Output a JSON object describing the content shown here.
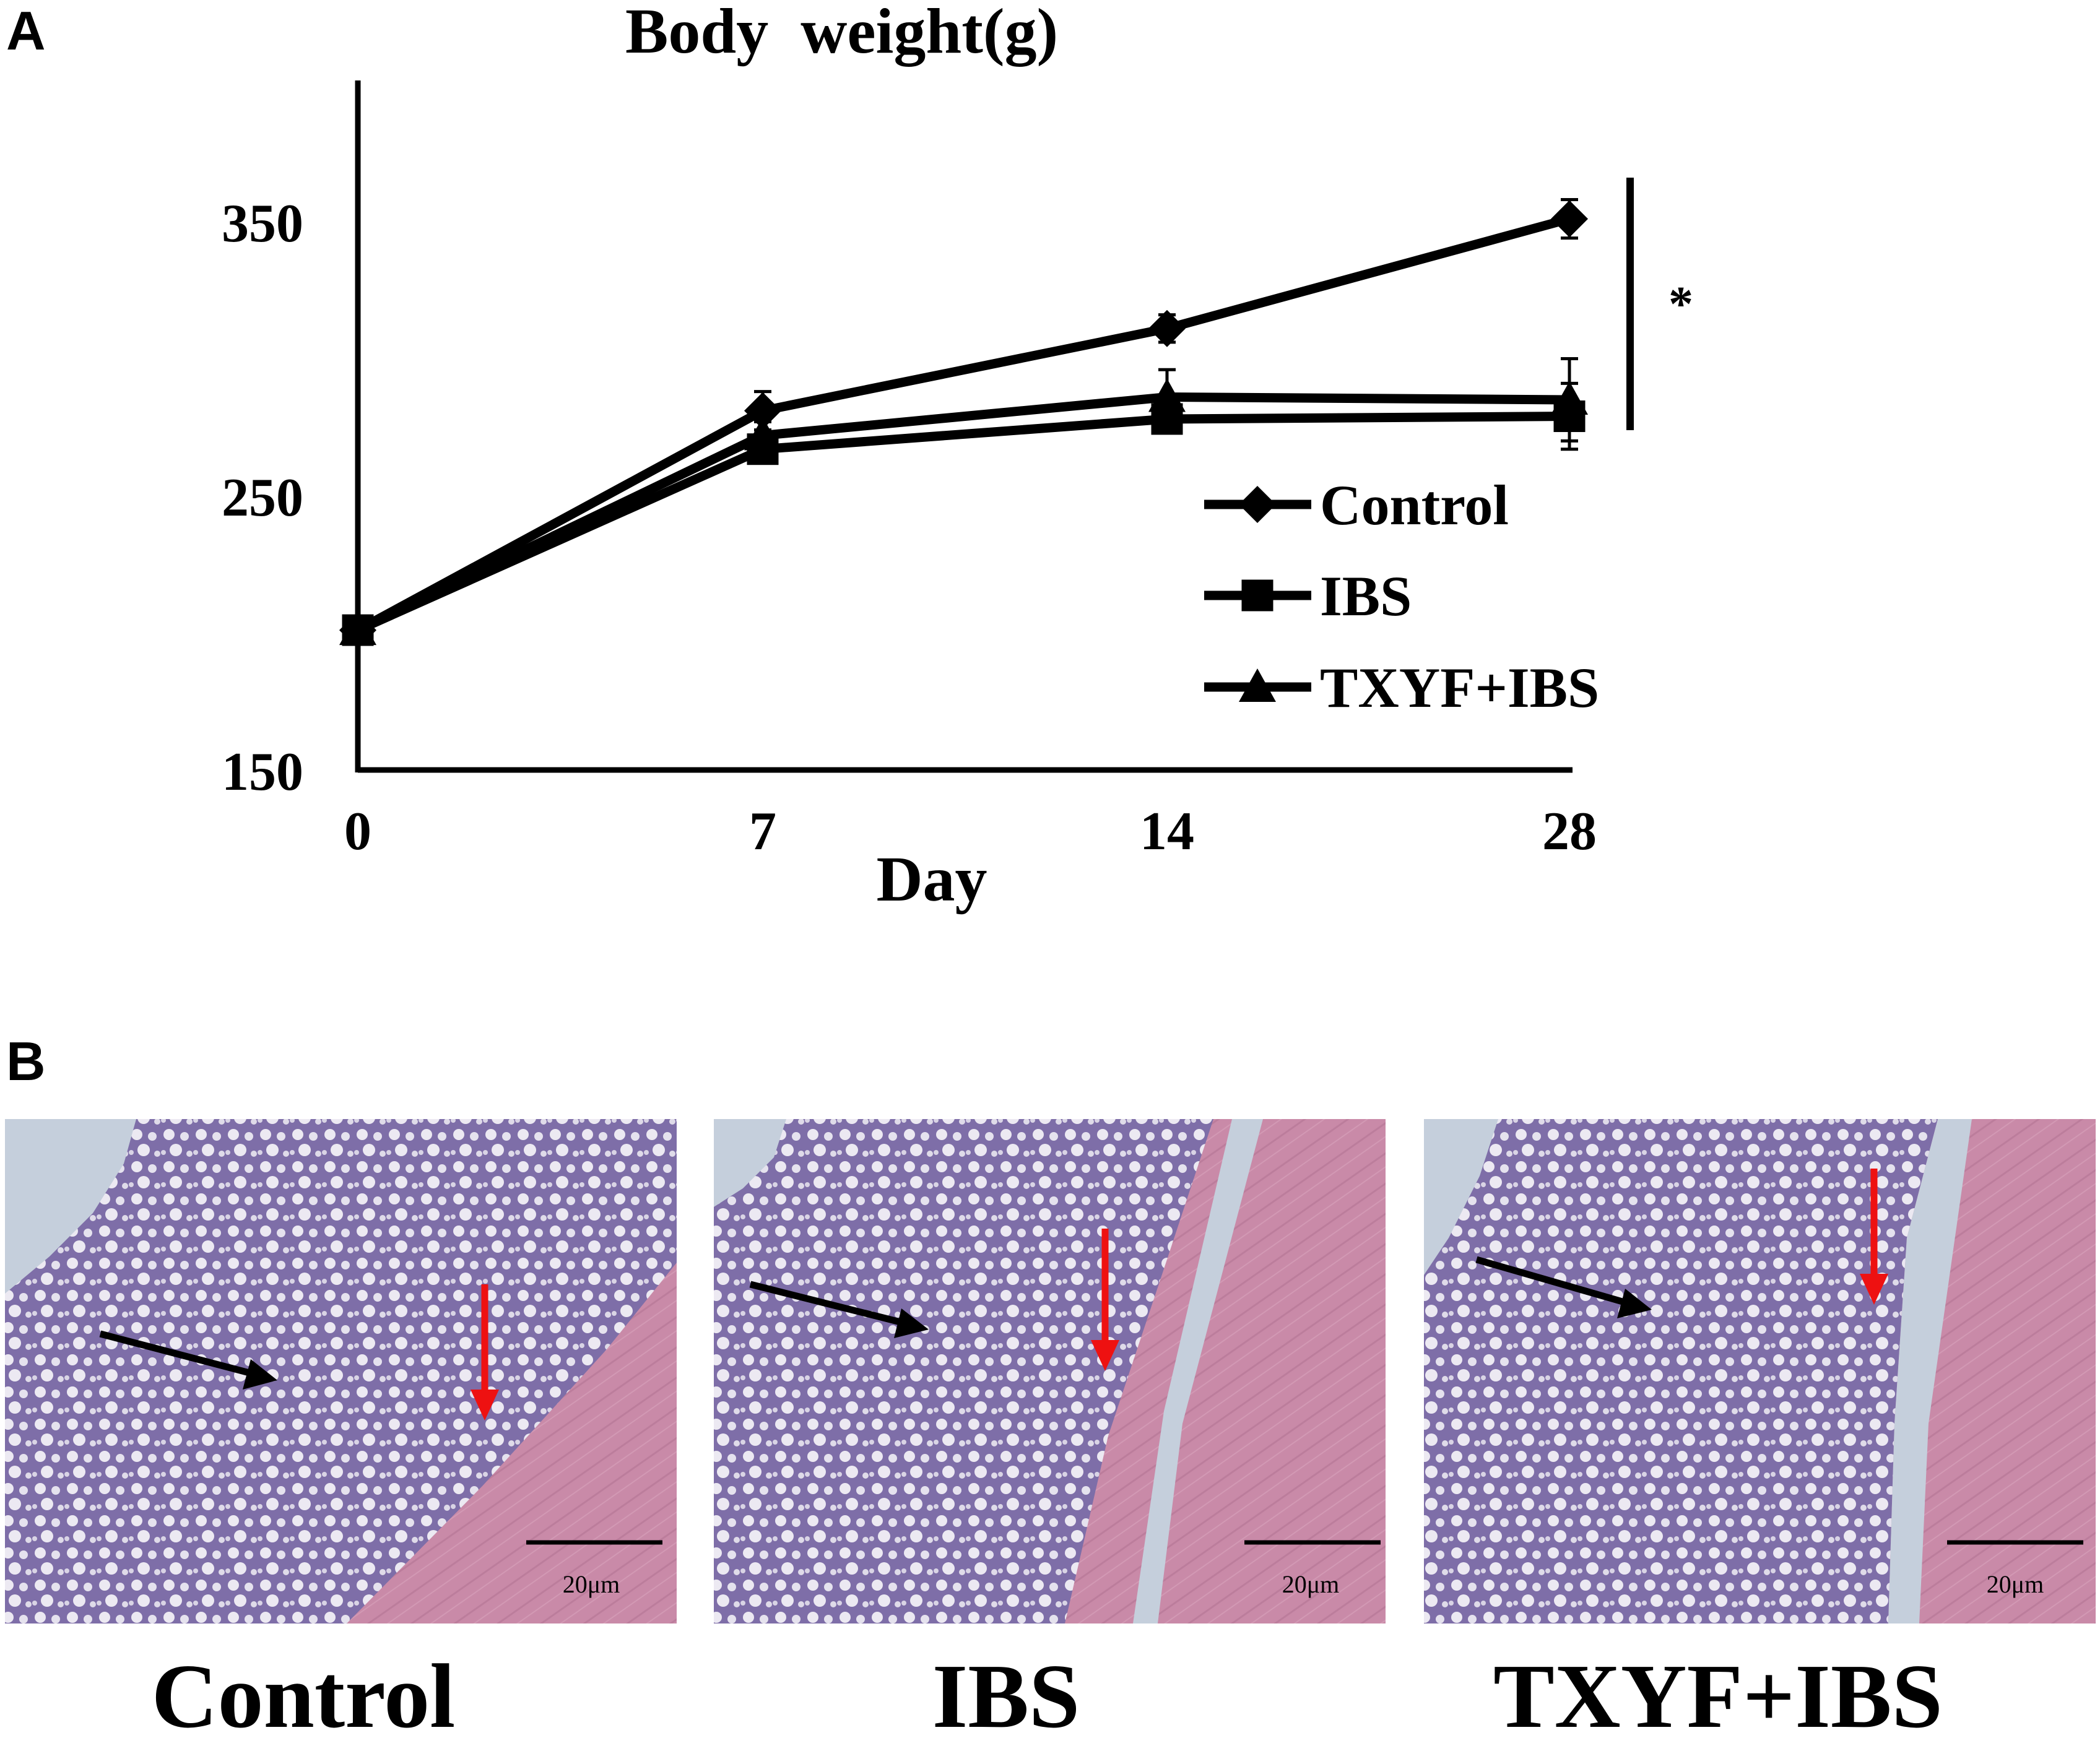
{
  "panels": {
    "a_label": "A",
    "b_label": "B"
  },
  "chart_data": {
    "type": "line",
    "title": "Body  weight(g)",
    "xlabel": "Day",
    "ylabel": "",
    "x": [
      0,
      7,
      14,
      28
    ],
    "x_tick_labels": [
      "0",
      "7",
      "14",
      "28"
    ],
    "ylim": [
      150,
      400
    ],
    "y_ticks": [
      150,
      250,
      350
    ],
    "grid": false,
    "legend_position": "lower-right",
    "series": [
      {
        "name": "Control",
        "marker": "diamond",
        "values": [
          201,
          281,
          311,
          351
        ],
        "errors": [
          5,
          7,
          5,
          7
        ]
      },
      {
        "name": "IBS",
        "marker": "square",
        "values": [
          201,
          267,
          278,
          279
        ],
        "errors": [
          5,
          5,
          5,
          12
        ]
      },
      {
        "name": "TXYF+IBS",
        "marker": "triangle",
        "values": [
          201,
          272,
          286,
          285
        ],
        "errors": [
          5,
          5,
          10,
          15
        ]
      }
    ],
    "significance": "*",
    "colors": {
      "line": "#000000"
    }
  },
  "micrographs": [
    {
      "caption": "Control",
      "scale_bar": "20μm"
    },
    {
      "caption": "IBS",
      "scale_bar": "20μm"
    },
    {
      "caption": "TXYF+IBS",
      "scale_bar": "20μm"
    }
  ],
  "colors": {
    "tissue_base": "#7e6ea8",
    "muscle": "#c98aa8",
    "lumen": "#c5cfdc",
    "arrow_black": "#000000",
    "arrow_red": "#ee1111"
  }
}
